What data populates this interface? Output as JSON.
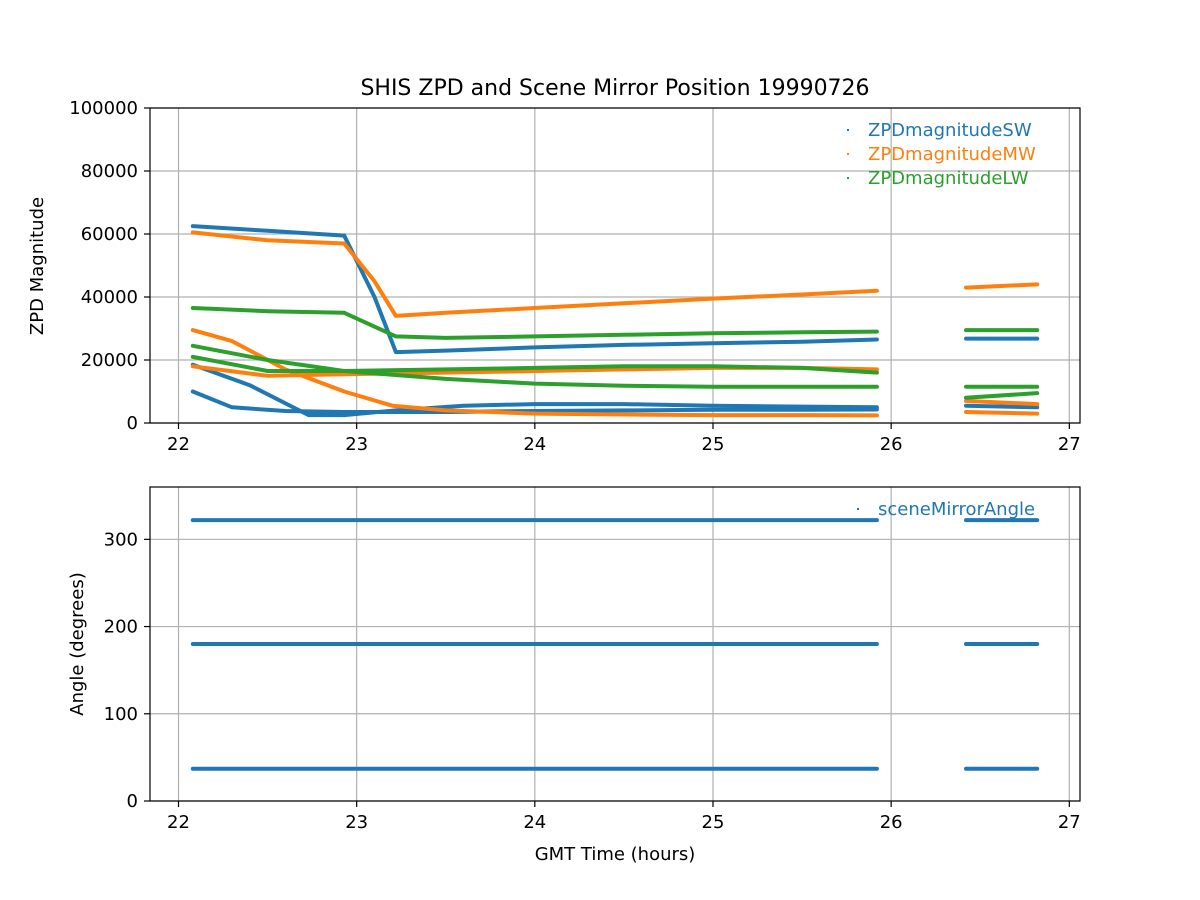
{
  "chart_data": [
    {
      "type": "scatter",
      "title": "SHIS ZPD and Scene Mirror Position 19990726",
      "xlabel": "",
      "ylabel": "ZPD Magnitude",
      "xlim": [
        21.84,
        27.06
      ],
      "ylim": [
        0,
        100000
      ],
      "xticks": [
        22,
        23,
        24,
        25,
        26,
        27
      ],
      "yticks": [
        0,
        20000,
        40000,
        60000,
        80000,
        100000
      ],
      "grid": true,
      "legend_position": "top-right",
      "series": [
        {
          "name": "ZPDmagnitudeSW",
          "color": "#1f77b4",
          "segments": [
            {
              "x": [
                22.08,
                22.5,
                22.93
              ],
              "y": [
                62500,
                61000,
                59500
              ]
            },
            {
              "x": [
                22.93,
                23.1,
                23.22,
                23.5,
                24.0,
                24.5,
                25.0,
                25.5,
                25.92
              ],
              "y": [
                59500,
                40000,
                22500,
                23000,
                24000,
                24800,
                25300,
                25800,
                26500
              ]
            },
            {
              "x": [
                26.42,
                26.82
              ],
              "y": [
                26800,
                26800
              ]
            },
            {
              "x": [
                22.08,
                22.4,
                22.73,
                22.93,
                23.22,
                23.6,
                24.0,
                24.5,
                25.0,
                25.5,
                25.92
              ],
              "y": [
                18500,
                12000,
                2500,
                2500,
                4000,
                5500,
                6000,
                6000,
                5500,
                5200,
                5000
              ]
            },
            {
              "x": [
                22.08,
                22.3,
                22.6,
                22.93,
                23.5,
                24.0,
                24.5,
                25.0,
                25.5,
                25.92
              ],
              "y": [
                10000,
                5000,
                3800,
                3500,
                3500,
                3800,
                4000,
                4200,
                4200,
                4300
              ]
            },
            {
              "x": [
                26.42,
                26.82
              ],
              "y": [
                5500,
                5000
              ]
            }
          ]
        },
        {
          "name": "ZPDmagnitudeMW",
          "color": "#ff7f0e",
          "segments": [
            {
              "x": [
                22.08,
                22.5,
                22.93
              ],
              "y": [
                60500,
                58000,
                57000
              ]
            },
            {
              "x": [
                22.93,
                23.1,
                23.22,
                23.5,
                24.0,
                24.5,
                25.0,
                25.5,
                25.92
              ],
              "y": [
                57000,
                45000,
                34000,
                35000,
                36500,
                38000,
                39500,
                40800,
                42000
              ]
            },
            {
              "x": [
                26.42,
                26.82
              ],
              "y": [
                43000,
                44000
              ]
            },
            {
              "x": [
                22.08,
                22.3,
                22.6,
                22.93,
                23.2,
                23.5,
                24.0,
                24.5,
                25.0,
                25.5,
                25.92
              ],
              "y": [
                29500,
                26000,
                17000,
                10000,
                5500,
                4000,
                3000,
                2700,
                2500,
                2500,
                2400
              ]
            },
            {
              "x": [
                22.08,
                22.5,
                22.93,
                23.5,
                24.0,
                24.5,
                25.0,
                25.5,
                25.92
              ],
              "y": [
                18000,
                15000,
                15500,
                16000,
                16500,
                17000,
                17500,
                17500,
                17000
              ]
            },
            {
              "x": [
                26.42,
                26.82
              ],
              "y": [
                3500,
                3000
              ]
            },
            {
              "x": [
                26.42,
                26.82
              ],
              "y": [
                7000,
                6000
              ]
            }
          ]
        },
        {
          "name": "ZPDmagnitudeLW",
          "color": "#2ca02c",
          "segments": [
            {
              "x": [
                22.08,
                22.5,
                22.93
              ],
              "y": [
                36500,
                35500,
                35000
              ]
            },
            {
              "x": [
                22.93,
                23.22,
                23.5,
                24.0,
                24.5,
                25.0,
                25.5,
                25.92
              ],
              "y": [
                35000,
                27500,
                27000,
                27500,
                28000,
                28500,
                28800,
                29000
              ]
            },
            {
              "x": [
                26.42,
                26.82
              ],
              "y": [
                29500,
                29500
              ]
            },
            {
              "x": [
                22.08,
                22.5,
                22.93,
                23.5,
                24.0,
                24.5,
                25.0,
                25.5,
                25.92
              ],
              "y": [
                24500,
                20000,
                16500,
                14000,
                12500,
                11800,
                11500,
                11500,
                11500
              ]
            },
            {
              "x": [
                22.08,
                22.5,
                22.93,
                23.5,
                24.0,
                24.5,
                25.0,
                25.5,
                25.92
              ],
              "y": [
                21000,
                16500,
                16500,
                17000,
                17500,
                18000,
                18000,
                17500,
                16000
              ]
            },
            {
              "x": [
                26.42,
                26.82
              ],
              "y": [
                11500,
                11500
              ]
            },
            {
              "x": [
                26.42,
                26.82
              ],
              "y": [
                8000,
                9500
              ]
            }
          ]
        }
      ]
    },
    {
      "type": "scatter",
      "title": "",
      "xlabel": "GMT Time (hours)",
      "ylabel": "Angle (degrees)",
      "xlim": [
        21.84,
        27.06
      ],
      "ylim": [
        0,
        360
      ],
      "xticks": [
        22,
        23,
        24,
        25,
        26,
        27
      ],
      "yticks": [
        0,
        100,
        200,
        300
      ],
      "grid": true,
      "legend_position": "top-right",
      "series": [
        {
          "name": "sceneMirrorAngle",
          "color": "#1f77b4",
          "segments": [
            {
              "x": [
                22.08,
                25.92
              ],
              "y": [
                322,
                322
              ]
            },
            {
              "x": [
                26.42,
                26.82
              ],
              "y": [
                322,
                322
              ]
            },
            {
              "x": [
                22.08,
                25.92
              ],
              "y": [
                180,
                180
              ]
            },
            {
              "x": [
                26.42,
                26.82
              ],
              "y": [
                180,
                180
              ]
            },
            {
              "x": [
                22.08,
                25.92
              ],
              "y": [
                37,
                37
              ]
            },
            {
              "x": [
                26.42,
                26.82
              ],
              "y": [
                37,
                37
              ]
            }
          ]
        }
      ]
    }
  ]
}
